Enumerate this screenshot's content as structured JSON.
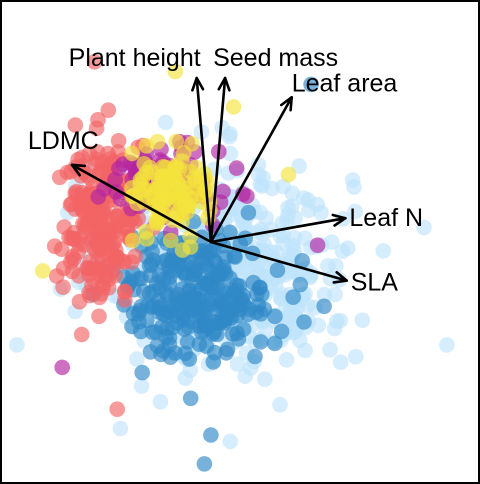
{
  "chart_data": {
    "type": "scatter",
    "subtype": "pca-biplot",
    "title": "",
    "xlabel": "",
    "ylabel": "",
    "axes_visible": false,
    "grid": false,
    "legend": "none",
    "xlim": [
      -3.2,
      4.1
    ],
    "ylim": [
      -3.7,
      3.7
    ],
    "origin": [
      0,
      0
    ],
    "point_style": {
      "opacity": 0.65,
      "radius_units": 0.12
    },
    "loadings": [
      {
        "label": "Plant height",
        "x": -0.22,
        "y": 2.55
      },
      {
        "label": "Seed mass",
        "x": 0.22,
        "y": 2.55
      },
      {
        "label": "Leaf area",
        "x": 1.25,
        "y": 2.25
      },
      {
        "label": "LDMC",
        "x": -2.15,
        "y": 1.2
      },
      {
        "label": "Leaf N",
        "x": 2.08,
        "y": 0.37
      },
      {
        "label": "SLA",
        "x": 2.1,
        "y": -0.6
      }
    ],
    "groups": [
      {
        "color": "#bfe4fb",
        "center": [
          0.3,
          -0.4
        ],
        "spread": [
          1.5,
          1.3
        ],
        "extra_points": [
          [
            3.65,
            -1.6
          ],
          [
            -3.0,
            -1.6
          ],
          [
            -1.4,
            -2.9
          ],
          [
            0.3,
            -3.1
          ]
        ],
        "n": 480
      },
      {
        "color": "#2f88c6",
        "center": [
          -0.2,
          -0.8
        ],
        "spread": [
          0.9,
          0.8
        ],
        "extra_points": [
          [
            -0.1,
            -3.45
          ],
          [
            0.0,
            -3.0
          ],
          [
            1.75,
            -1.0
          ],
          [
            1.55,
            2.45
          ]
        ],
        "n": 260
      },
      {
        "color": "#f26466",
        "center": [
          -1.7,
          0.3
        ],
        "spread": [
          0.5,
          1.0
        ],
        "extra_points": [
          [
            -1.8,
            2.8
          ],
          [
            -1.45,
            -2.6
          ],
          [
            -1.05,
            1.5
          ]
        ],
        "n": 220
      },
      {
        "color": "#b3249f",
        "center": [
          -0.8,
          0.9
        ],
        "spread": [
          0.75,
          0.45
        ],
        "extra_points": [
          [
            -2.3,
            -1.95
          ],
          [
            1.65,
            -0.05
          ]
        ],
        "n": 90
      },
      {
        "color": "#f5e33c",
        "center": [
          -0.6,
          0.8
        ],
        "spread": [
          0.45,
          0.55
        ],
        "extra_points": [
          [
            -2.6,
            -0.45
          ],
          [
            -0.55,
            2.65
          ],
          [
            1.2,
            1.05
          ],
          [
            0.35,
            2.1
          ]
        ],
        "n": 110
      }
    ]
  }
}
